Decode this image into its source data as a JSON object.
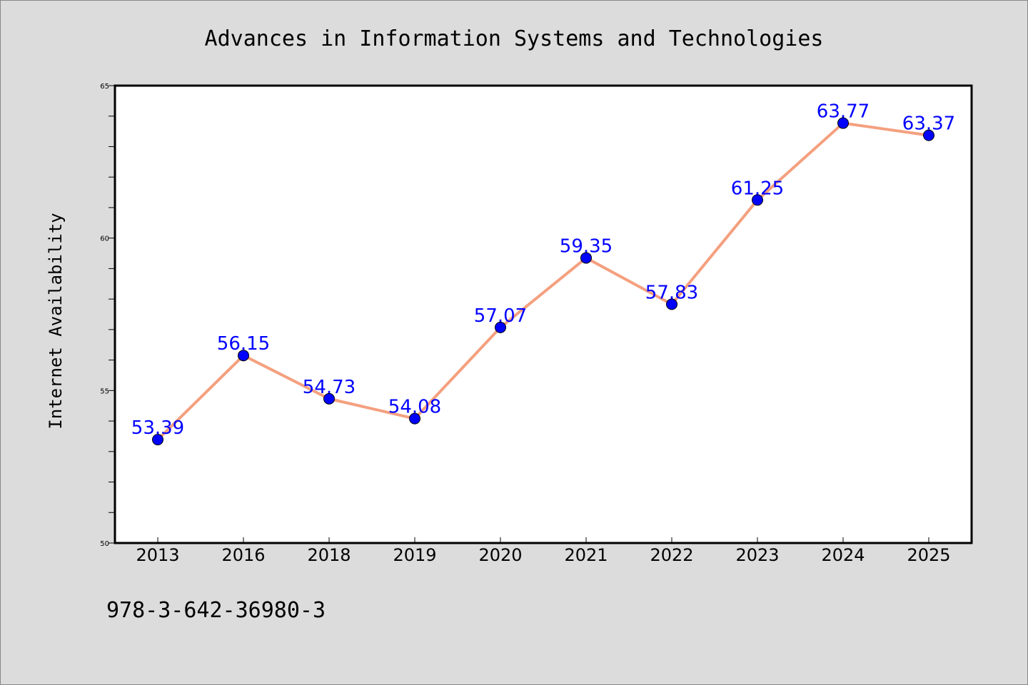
{
  "chart_data": {
    "type": "line",
    "title": "Advances in Information Systems and Technologies",
    "xlabel": "",
    "ylabel": "Internet Availability",
    "categories": [
      "2013",
      "2016",
      "2018",
      "2019",
      "2020",
      "2021",
      "2022",
      "2023",
      "2024",
      "2025"
    ],
    "series": [
      {
        "values": [
          53.39,
          56.15,
          54.73,
          54.08,
          57.07,
          59.35,
          57.83,
          61.25,
          63.77,
          63.37
        ],
        "labels": [
          "53.39",
          "56.15",
          "54.73",
          "54.08",
          "57.07",
          "59.35",
          "57.83",
          "61.25",
          "63.77",
          "63.37"
        ]
      }
    ],
    "ylim": [
      50,
      65
    ],
    "yticks": [
      "50",
      "55",
      "60",
      "65"
    ],
    "grid": false,
    "line_color": "#f4a07f",
    "marker_color": "#0000ff",
    "label_color": "#0000ff"
  },
  "footer": {
    "isbn": "978-3-642-36980-3"
  }
}
